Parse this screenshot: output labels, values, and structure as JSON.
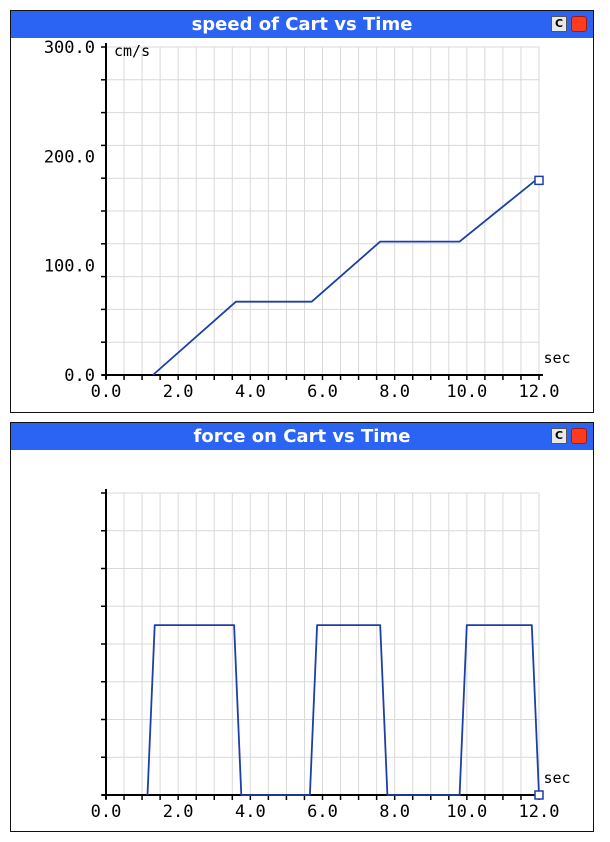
{
  "chart_data": [
    {
      "type": "line",
      "title": "speed of Cart vs Time",
      "xlabel": "sec",
      "ylabel": "cm/s",
      "xlim": [
        0,
        12
      ],
      "ylim": [
        0,
        300
      ],
      "xticks": [
        "0.0",
        "2.0",
        "4.0",
        "6.0",
        "8.0",
        "10.0",
        "12.0"
      ],
      "yticks": [
        "0.0",
        "100.0",
        "200.0",
        "300.0"
      ],
      "grid": true,
      "series": [
        {
          "color": "#1d3fa8",
          "x": [
            1.3,
            3.6,
            5.7,
            7.6,
            9.8,
            11.9
          ],
          "y": [
            0,
            67,
            67,
            122,
            122,
            178
          ]
        }
      ],
      "end_marker": {
        "x": 12.0,
        "y": 178
      }
    },
    {
      "type": "line",
      "title": "force on Cart vs Time",
      "xlabel": "sec",
      "ylabel": "",
      "xlim": [
        0,
        12
      ],
      "ylim": [
        0,
        8
      ],
      "xticks": [
        "0.0",
        "2.0",
        "4.0",
        "6.0",
        "8.0",
        "10.0",
        "12.0"
      ],
      "yticks": [],
      "grid": true,
      "series": [
        {
          "color": "#1d3fa8",
          "x": [
            1.15,
            1.35,
            3.55,
            3.75,
            5.65,
            5.85,
            7.6,
            7.8,
            9.8,
            10.0,
            11.8,
            12.0
          ],
          "y": [
            0,
            4.5,
            4.5,
            0,
            0,
            4.5,
            4.5,
            0,
            0,
            4.5,
            4.5,
            0
          ]
        }
      ],
      "end_marker": {
        "x": 12.0,
        "y": 0
      }
    }
  ],
  "windows": [
    {
      "title": "speed of Cart vs Time",
      "c_button": "C"
    },
    {
      "title": "force on Cart vs Time",
      "c_button": "C"
    }
  ]
}
